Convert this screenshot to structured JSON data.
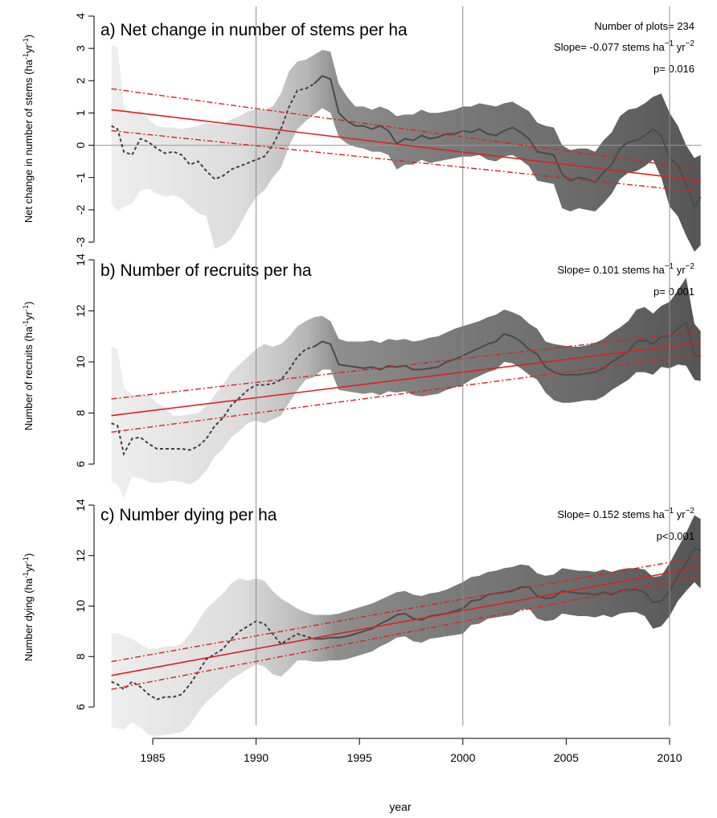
{
  "chart_data": [
    {
      "panel": "a",
      "type": "line",
      "title": "a) Net change in number of stems per ha",
      "ylabel": "Net change in number of stems (ha",
      "ylabel_unit": "-1",
      "ylabel_mid": "yr",
      "ylabel_end": ")",
      "xlabel": "",
      "ylim": [
        -3,
        4
      ],
      "yticks": [
        "-3",
        "-2",
        "-1",
        "0",
        "1",
        "2",
        "3",
        "4"
      ],
      "zero_line": true,
      "annotations": [
        {
          "text": "Number of plots= 234"
        },
        {
          "text": "Slope= -0.077 stems ha"
        },
        {
          "text": "p= 0.016"
        }
      ],
      "series": [
        {
          "x": [
            1983.0,
            1983.3,
            1983.6,
            1984.0,
            1984.4,
            1984.8,
            1985.2,
            1985.6,
            1986.0,
            1986.4,
            1986.8,
            1987.2,
            1987.6,
            1988.0,
            1988.4,
            1988.8,
            1989.2,
            1989.6,
            1990.0,
            1990.4,
            1990.8,
            1991.2,
            1991.6,
            1992.0,
            1992.4,
            1992.8,
            1993.2,
            1993.6,
            1994.0,
            1994.4,
            1994.8,
            1995.2,
            1995.6,
            1996.0,
            1996.4,
            1996.8,
            1997.2,
            1997.6,
            1998.0,
            1998.4,
            1998.8,
            1999.2,
            1999.6,
            2000.0,
            2000.4,
            2000.8,
            2001.2,
            2001.6,
            2002.0,
            2002.4,
            2002.8,
            2003.2,
            2003.6,
            2004.0,
            2004.4,
            2004.8,
            2005.2,
            2005.6,
            2006.0,
            2006.4,
            2006.8,
            2007.2,
            2007.6,
            2008.0,
            2008.4,
            2008.8,
            2009.2,
            2009.6,
            2010.0,
            2010.4,
            2010.8,
            2011.2,
            2011.5
          ],
          "y": [
            0.6,
            0.5,
            -0.2,
            -0.3,
            0.2,
            0.1,
            -0.1,
            -0.25,
            -0.2,
            -0.3,
            -0.6,
            -0.5,
            -0.8,
            -1.05,
            -0.95,
            -0.75,
            -0.65,
            -0.55,
            -0.45,
            -0.35,
            0.0,
            0.5,
            1.2,
            1.7,
            1.75,
            1.9,
            2.15,
            2.05,
            1.0,
            0.75,
            0.6,
            0.6,
            0.5,
            0.6,
            0.45,
            0.05,
            0.2,
            0.15,
            0.3,
            0.2,
            0.25,
            0.35,
            0.35,
            0.45,
            0.4,
            0.5,
            0.35,
            0.3,
            0.45,
            0.55,
            0.4,
            0.2,
            -0.2,
            -0.25,
            -0.3,
            -0.9,
            -1.1,
            -1.0,
            -1.05,
            -1.15,
            -0.85,
            -0.6,
            -0.1,
            0.1,
            0.15,
            0.3,
            0.5,
            0.3,
            -0.4,
            -0.6,
            -1.2,
            -1.9,
            -1.6
          ],
          "upper": [
            3.1,
            3.05,
            1.2,
            1.0,
            1.1,
            0.8,
            0.6,
            0.55,
            0.55,
            0.5,
            0.55,
            0.6,
            0.7,
            0.65,
            0.65,
            0.8,
            0.9,
            1.05,
            1.1,
            1.1,
            1.2,
            1.6,
            2.3,
            2.6,
            2.65,
            2.8,
            2.95,
            2.9,
            1.9,
            1.5,
            1.2,
            1.2,
            1.1,
            1.2,
            1.1,
            0.9,
            0.95,
            0.95,
            1.1,
            1.0,
            1.0,
            1.05,
            1.1,
            1.2,
            1.2,
            1.3,
            1.25,
            1.2,
            1.3,
            1.35,
            1.2,
            1.05,
            0.7,
            0.6,
            0.55,
            0.0,
            -0.15,
            -0.1,
            -0.1,
            -0.2,
            0.15,
            0.4,
            0.9,
            1.1,
            1.15,
            1.3,
            1.5,
            1.6,
            1.0,
            0.6,
            0.0,
            -0.4,
            -0.3
          ],
          "lower": [
            -1.8,
            -2.05,
            -1.9,
            -1.8,
            -1.4,
            -1.35,
            -1.5,
            -1.6,
            -1.55,
            -1.65,
            -1.9,
            -2.1,
            -2.2,
            -3.2,
            -3.1,
            -2.9,
            -2.5,
            -2.0,
            -1.6,
            -1.4,
            -1.0,
            -0.7,
            0.0,
            0.5,
            0.75,
            0.95,
            1.15,
            1.0,
            0.25,
            0.05,
            -0.05,
            -0.1,
            -0.2,
            -0.2,
            -0.3,
            -0.75,
            -0.6,
            -0.6,
            -0.45,
            -0.55,
            -0.5,
            -0.45,
            -0.4,
            -0.35,
            -0.35,
            -0.3,
            -0.45,
            -0.5,
            -0.35,
            -0.3,
            -0.45,
            -0.65,
            -1.1,
            -1.15,
            -1.2,
            -1.95,
            -2.05,
            -1.95,
            -2.0,
            -2.05,
            -1.8,
            -1.5,
            -1.05,
            -0.85,
            -0.8,
            -0.65,
            -0.45,
            -1.0,
            -1.9,
            -2.2,
            -2.8,
            -3.3,
            -3.1
          ]
        }
      ],
      "fit": {
        "y_start": 1.1,
        "y_end": -1.1,
        "upper_start": 1.75,
        "upper_end": -0.75,
        "lower_start": 0.45,
        "lower_end": -1.45
      }
    },
    {
      "panel": "b",
      "type": "line",
      "title": "b) Number of recruits per ha",
      "ylabel": "Number of recruits (ha",
      "ylabel_unit": "-1",
      "ylabel_mid": "yr",
      "ylabel_end": ")",
      "xlabel": "",
      "ylim": [
        5.2,
        14
      ],
      "yticks": [
        "6",
        "8",
        "10",
        "12",
        "14"
      ],
      "annotations": [
        {
          "text": "Slope= 0.101 stems ha"
        },
        {
          "text": "p= 0.001"
        }
      ],
      "series": [
        {
          "x": [
            1983.0,
            1983.3,
            1983.6,
            1984.0,
            1984.4,
            1984.8,
            1985.2,
            1985.6,
            1986.0,
            1986.4,
            1986.8,
            1987.2,
            1987.6,
            1988.0,
            1988.4,
            1988.8,
            1989.2,
            1989.6,
            1990.0,
            1990.4,
            1990.8,
            1991.2,
            1991.6,
            1992.0,
            1992.4,
            1992.8,
            1993.2,
            1993.6,
            1994.0,
            1994.4,
            1994.8,
            1995.2,
            1995.6,
            1996.0,
            1996.4,
            1996.8,
            1997.2,
            1997.6,
            1998.0,
            1998.4,
            1998.8,
            1999.2,
            1999.6,
            2000.0,
            2000.4,
            2000.8,
            2001.2,
            2001.6,
            2002.0,
            2002.4,
            2002.8,
            2003.2,
            2003.6,
            2004.0,
            2004.4,
            2004.8,
            2005.2,
            2005.6,
            2006.0,
            2006.4,
            2006.8,
            2007.2,
            2007.6,
            2008.0,
            2008.4,
            2008.8,
            2009.2,
            2009.6,
            2010.0,
            2010.4,
            2010.8,
            2011.2,
            2011.5
          ],
          "y": [
            7.6,
            7.5,
            6.4,
            7.0,
            7.05,
            6.8,
            6.6,
            6.6,
            6.6,
            6.6,
            6.55,
            6.7,
            7.0,
            7.5,
            7.8,
            8.3,
            8.6,
            8.9,
            9.1,
            9.1,
            9.15,
            9.3,
            9.7,
            10.2,
            10.5,
            10.6,
            10.8,
            10.7,
            9.9,
            9.85,
            9.8,
            9.75,
            9.8,
            9.7,
            9.85,
            9.8,
            9.85,
            9.7,
            9.7,
            9.75,
            9.8,
            10.0,
            10.1,
            10.25,
            10.4,
            10.55,
            10.7,
            10.8,
            11.1,
            11.0,
            10.8,
            10.5,
            10.3,
            9.8,
            9.6,
            9.5,
            9.5,
            9.5,
            9.55,
            9.6,
            9.75,
            10.0,
            10.2,
            10.4,
            10.8,
            10.85,
            10.7,
            11.0,
            11.0,
            11.3,
            11.55,
            10.3,
            10.2
          ],
          "upper": [
            10.6,
            10.5,
            9.0,
            8.7,
            8.75,
            8.7,
            8.4,
            8.2,
            7.9,
            7.9,
            7.95,
            8.0,
            8.3,
            8.7,
            9.1,
            9.6,
            9.9,
            10.2,
            10.5,
            10.7,
            10.6,
            10.7,
            11.0,
            11.4,
            11.6,
            11.75,
            11.8,
            11.6,
            10.9,
            10.8,
            10.8,
            10.8,
            10.85,
            10.75,
            10.9,
            10.85,
            10.9,
            10.8,
            10.85,
            10.95,
            11.0,
            11.15,
            11.3,
            11.4,
            11.5,
            11.6,
            11.75,
            11.85,
            12.05,
            11.95,
            11.8,
            11.5,
            11.3,
            10.8,
            10.7,
            10.65,
            10.6,
            10.6,
            10.65,
            10.75,
            10.9,
            11.15,
            11.35,
            11.6,
            12.05,
            12.15,
            11.9,
            12.2,
            12.35,
            12.8,
            13.3,
            11.5,
            11.2
          ],
          "lower": [
            5.3,
            5.2,
            4.65,
            5.5,
            5.45,
            5.3,
            5.25,
            5.3,
            5.35,
            5.3,
            5.2,
            5.4,
            5.75,
            6.3,
            6.6,
            7.05,
            7.3,
            7.6,
            7.7,
            7.6,
            7.75,
            7.9,
            8.4,
            8.9,
            9.3,
            9.4,
            9.7,
            9.7,
            8.9,
            8.85,
            8.8,
            8.75,
            8.8,
            8.7,
            8.85,
            8.8,
            8.85,
            8.7,
            8.65,
            8.7,
            8.75,
            8.9,
            9.0,
            9.1,
            9.3,
            9.45,
            9.6,
            9.7,
            10.0,
            9.95,
            9.75,
            9.5,
            9.3,
            8.8,
            8.5,
            8.4,
            8.4,
            8.45,
            8.5,
            8.5,
            8.65,
            8.9,
            9.1,
            9.3,
            9.6,
            9.6,
            9.5,
            9.8,
            9.75,
            9.9,
            9.85,
            9.3,
            9.25
          ]
        }
      ],
      "fit": {
        "y_start": 7.9,
        "y_end": 10.75,
        "upper_start": 8.55,
        "upper_end": 11.2,
        "lower_start": 7.25,
        "lower_end": 10.3
      }
    },
    {
      "panel": "c",
      "type": "line",
      "title": "c) Number dying per ha",
      "ylabel": "Number dying (ha",
      "ylabel_unit": "-1",
      "ylabel_mid": "yr",
      "ylabel_end": ")",
      "xlabel": "year",
      "ylim": [
        4.9,
        14
      ],
      "yticks": [
        "6",
        "8",
        "10",
        "12",
        "14"
      ],
      "xticks": [
        "1985",
        "1990",
        "1995",
        "2000",
        "2005",
        "2010"
      ],
      "xlim": [
        1982.5,
        2011.8
      ],
      "annotations": [
        {
          "text": "Slope= 0.152 stems ha"
        },
        {
          "text": "p<0.001"
        }
      ],
      "series": [
        {
          "x": [
            1983.0,
            1983.3,
            1983.6,
            1984.0,
            1984.4,
            1984.8,
            1985.2,
            1985.6,
            1986.0,
            1986.4,
            1986.8,
            1987.2,
            1987.6,
            1988.0,
            1988.4,
            1988.8,
            1989.2,
            1989.6,
            1990.0,
            1990.4,
            1990.8,
            1991.2,
            1991.6,
            1992.0,
            1992.4,
            1992.8,
            1993.2,
            1993.6,
            1994.0,
            1994.4,
            1994.8,
            1995.2,
            1995.6,
            1996.0,
            1996.4,
            1996.8,
            1997.2,
            1997.6,
            1998.0,
            1998.4,
            1998.8,
            1999.2,
            1999.6,
            2000.0,
            2000.4,
            2000.8,
            2001.2,
            2001.6,
            2002.0,
            2002.4,
            2002.8,
            2003.2,
            2003.6,
            2004.0,
            2004.4,
            2004.8,
            2005.2,
            2005.6,
            2006.0,
            2006.4,
            2006.8,
            2007.2,
            2007.6,
            2008.0,
            2008.4,
            2008.8,
            2009.2,
            2009.6,
            2010.0,
            2010.4,
            2010.8,
            2011.2,
            2011.5
          ],
          "y": [
            7.0,
            6.9,
            6.7,
            7.0,
            6.8,
            6.5,
            6.3,
            6.4,
            6.4,
            6.5,
            6.9,
            7.4,
            7.9,
            8.1,
            8.3,
            8.7,
            9.0,
            9.2,
            9.4,
            9.3,
            8.9,
            8.5,
            8.7,
            8.9,
            8.8,
            8.7,
            8.7,
            8.75,
            8.75,
            8.8,
            8.9,
            9.0,
            9.1,
            9.3,
            9.45,
            9.65,
            9.7,
            9.5,
            9.45,
            9.6,
            9.65,
            9.7,
            9.8,
            9.9,
            10.2,
            10.25,
            10.45,
            10.5,
            10.55,
            10.6,
            10.75,
            10.75,
            10.4,
            10.3,
            10.35,
            10.6,
            10.55,
            10.5,
            10.5,
            10.45,
            10.55,
            10.45,
            10.6,
            10.65,
            10.65,
            10.55,
            10.15,
            10.2,
            10.6,
            11.2,
            11.7,
            12.3,
            12.2
          ],
          "upper": [
            8.9,
            8.95,
            8.8,
            8.7,
            8.5,
            8.3,
            8.3,
            8.4,
            8.4,
            8.5,
            8.9,
            9.4,
            9.9,
            10.2,
            10.5,
            10.9,
            11.1,
            11.0,
            11.1,
            11.0,
            10.6,
            10.3,
            10.1,
            9.9,
            9.75,
            9.65,
            9.65,
            9.65,
            9.7,
            9.8,
            9.9,
            10.0,
            10.1,
            10.25,
            10.4,
            10.55,
            10.6,
            10.45,
            10.4,
            10.5,
            10.55,
            10.65,
            10.8,
            10.95,
            11.15,
            11.2,
            11.35,
            11.4,
            11.5,
            11.55,
            11.65,
            11.6,
            11.3,
            11.2,
            11.25,
            11.5,
            11.45,
            11.4,
            11.4,
            11.35,
            11.45,
            11.35,
            11.45,
            11.5,
            11.5,
            11.45,
            11.15,
            11.2,
            11.7,
            12.3,
            12.9,
            13.6,
            13.45
          ],
          "lower": [
            5.2,
            5.15,
            5.1,
            5.4,
            5.2,
            4.9,
            4.85,
            4.9,
            4.95,
            5.0,
            5.3,
            5.8,
            6.2,
            6.5,
            6.8,
            7.1,
            7.3,
            7.5,
            7.7,
            7.6,
            7.3,
            7.2,
            7.5,
            7.85,
            7.85,
            7.8,
            7.8,
            7.85,
            7.85,
            7.9,
            8.0,
            8.1,
            8.2,
            8.4,
            8.55,
            8.75,
            8.8,
            8.6,
            8.55,
            8.7,
            8.75,
            8.8,
            8.85,
            8.9,
            9.25,
            9.3,
            9.5,
            9.55,
            9.6,
            9.65,
            9.85,
            9.9,
            9.5,
            9.4,
            9.45,
            9.7,
            9.65,
            9.6,
            9.6,
            9.55,
            9.65,
            9.55,
            9.7,
            9.75,
            9.75,
            9.6,
            9.1,
            9.2,
            9.6,
            10.2,
            10.6,
            10.95,
            10.7
          ]
        }
      ],
      "fit": {
        "y_start": 7.25,
        "y_end": 11.55,
        "upper_start": 7.8,
        "upper_end": 11.95,
        "lower_start": 6.7,
        "lower_end": 11.2
      }
    }
  ],
  "styling": {
    "fit_color": "#e0201c",
    "line_color": "#4a4a4a",
    "band_light": "#e4e4e4",
    "band_dark": "#555555",
    "vline_years": [
      1990,
      2000,
      2010
    ],
    "dashed_until": 1992.8
  }
}
